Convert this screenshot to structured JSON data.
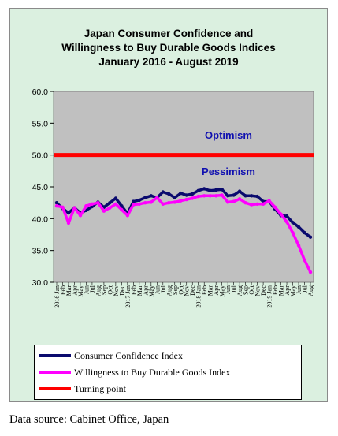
{
  "chart_data": {
    "type": "line",
    "title": [
      "Japan Consumer Confidence and",
      "Willingness to Buy Durable Goods Indices",
      "January 2016 - August 2019"
    ],
    "xlabel": "",
    "ylabel": "",
    "ylim": [
      30,
      60
    ],
    "yticks": [
      "30.0",
      "35.0",
      "40.0",
      "45.0",
      "50.0",
      "55.0",
      "60.0"
    ],
    "grid": false,
    "legend_position": "bottom",
    "x": [
      "2016 Jan",
      "Feb",
      "Mar",
      "Apr",
      "May",
      "Jun",
      "Jul",
      "Aug",
      "Sep",
      "Oct",
      "Nov",
      "Dec",
      "2017 Jan",
      "Feb",
      "Mar",
      "Apr",
      "May",
      "Jun",
      "Jul",
      "Aug",
      "Sep",
      "Oct",
      "Nov",
      "Dec",
      "2018 Jan",
      "Feb",
      "Mar",
      "Apr",
      "May",
      "Jun",
      "Jul",
      "Aug",
      "Sep",
      "Oct",
      "Nov",
      "Dec",
      "2019 Jan",
      "Feb",
      "Mar",
      "Apr",
      "May",
      "Jun",
      "Jul",
      "Aug"
    ],
    "series": [
      {
        "name": "Consumer Confidence Index",
        "color": "#0a0a6e",
        "values": [
          42.5,
          41.6,
          40.9,
          41.7,
          40.9,
          41.3,
          41.9,
          42.6,
          41.8,
          42.5,
          43.2,
          42.0,
          40.8,
          42.7,
          42.9,
          43.3,
          43.6,
          43.3,
          44.2,
          43.9,
          43.3,
          44.0,
          43.7,
          43.9,
          44.4,
          44.7,
          44.4,
          44.5,
          44.6,
          43.6,
          43.7,
          44.3,
          43.6,
          43.6,
          43.5,
          42.7,
          42.7,
          41.5,
          40.5,
          40.4,
          39.4,
          38.7,
          37.8,
          37.1
        ]
      },
      {
        "name": "Willingness to Buy Durable Goods Index",
        "color": "#ff00ff",
        "values": [
          42.0,
          41.8,
          39.3,
          41.7,
          40.5,
          42.0,
          42.3,
          42.5,
          41.2,
          41.7,
          42.3,
          41.4,
          40.5,
          42.2,
          42.3,
          42.5,
          42.6,
          43.3,
          42.3,
          42.5,
          42.6,
          42.8,
          43.0,
          43.2,
          43.5,
          43.6,
          43.6,
          43.6,
          43.7,
          42.6,
          42.7,
          43.1,
          42.5,
          42.2,
          42.3,
          42.3,
          42.8,
          41.8,
          40.7,
          39.5,
          37.8,
          35.8,
          33.5,
          31.6
        ]
      },
      {
        "name": "Turning point",
        "color": "#ff0000",
        "values": [
          50,
          50,
          50,
          50,
          50,
          50,
          50,
          50,
          50,
          50,
          50,
          50,
          50,
          50,
          50,
          50,
          50,
          50,
          50,
          50,
          50,
          50,
          50,
          50,
          50,
          50,
          50,
          50,
          50,
          50,
          50,
          50,
          50,
          50,
          50,
          50,
          50,
          50,
          50,
          50,
          50,
          50,
          50,
          50
        ]
      }
    ],
    "annotations": {
      "optimism": "Optimism",
      "pessimism": "Pessimism"
    }
  },
  "source": "Data source: Cabinet Office, Japan"
}
